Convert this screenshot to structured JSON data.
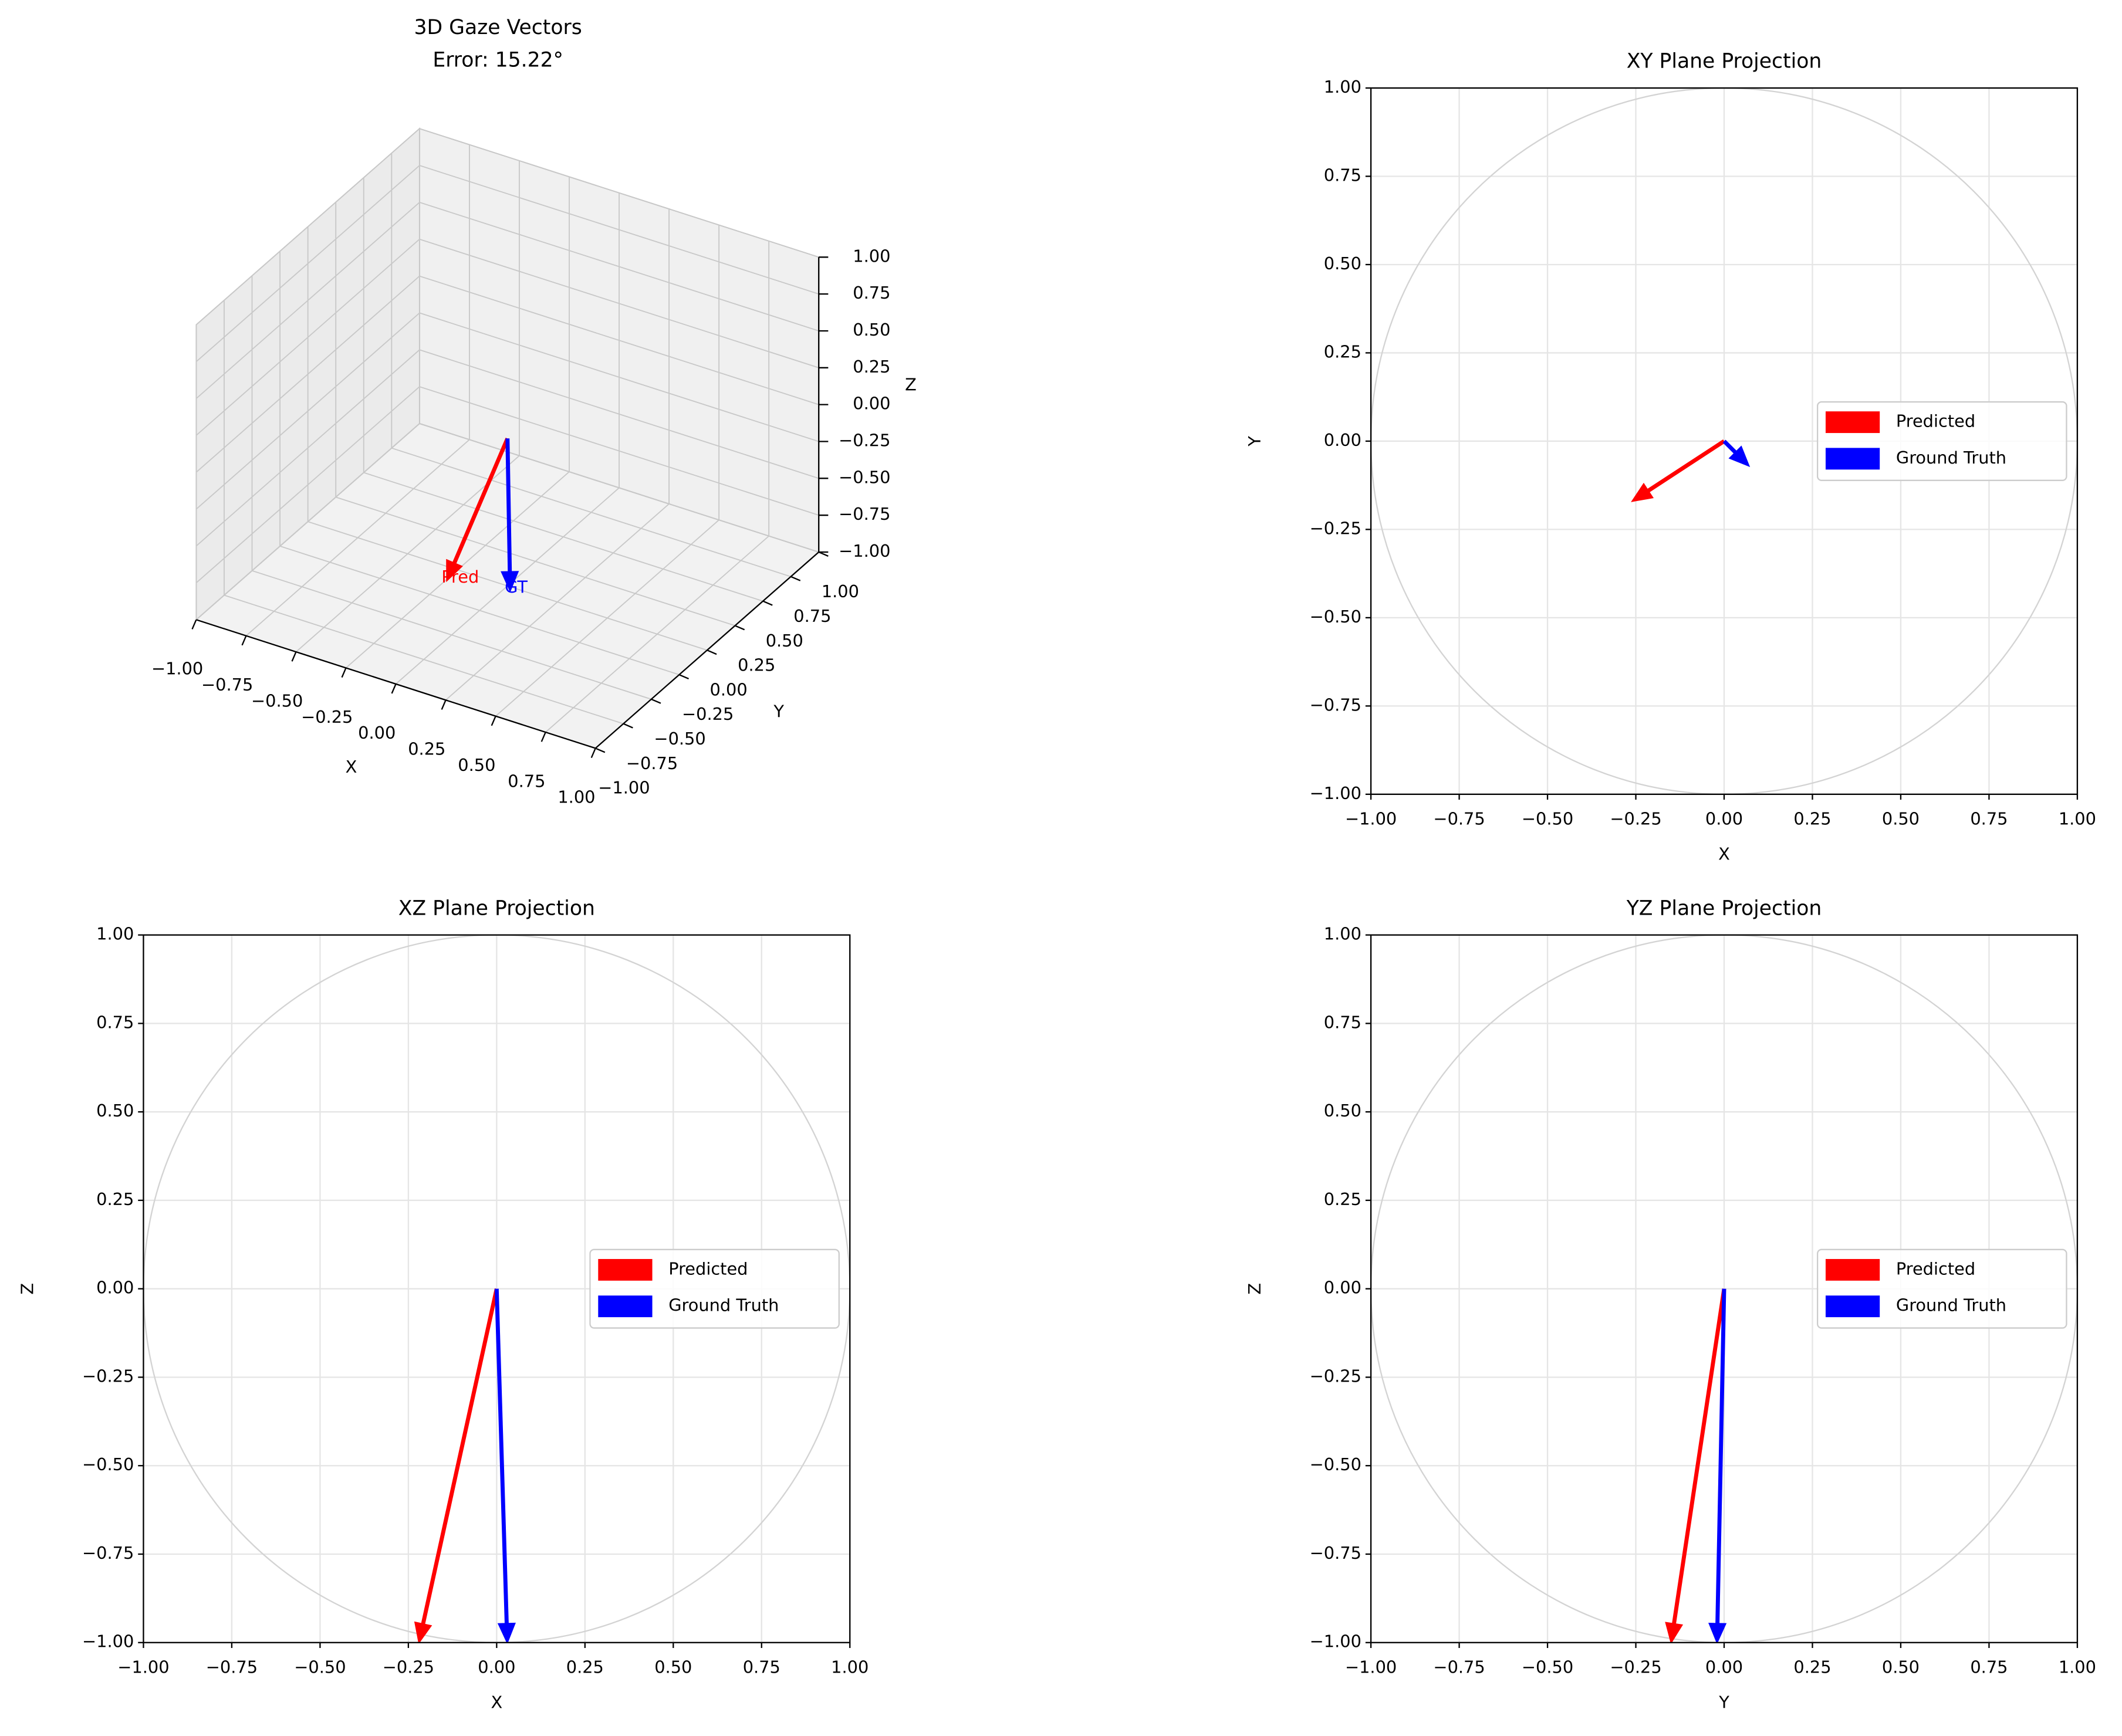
{
  "chart_data": [
    {
      "type": "quiver3d",
      "title": "3D Gaze Vectors",
      "subtitle": "Error: 15.22°",
      "xlabel": "X",
      "ylabel": "Y",
      "zlabel": "Z",
      "xlim": [
        -1,
        1
      ],
      "ylim": [
        -1,
        1
      ],
      "zlim": [
        -1,
        1
      ],
      "xticks": [
        {
          "value": -1,
          "label": "−1.00"
        },
        {
          "value": -0.75,
          "label": "−0.75"
        },
        {
          "value": -0.5,
          "label": "−0.50"
        },
        {
          "value": -0.25,
          "label": "−0.25"
        },
        {
          "value": 0,
          "label": "0.00"
        },
        {
          "value": 0.25,
          "label": "0.25"
        },
        {
          "value": 0.5,
          "label": "0.50"
        },
        {
          "value": 0.75,
          "label": "0.75"
        },
        {
          "value": 1,
          "label": "1.00"
        }
      ],
      "yticks": [
        {
          "value": -1,
          "label": "−1.00"
        },
        {
          "value": -0.75,
          "label": "−0.75"
        },
        {
          "value": -0.5,
          "label": "−0.50"
        },
        {
          "value": -0.25,
          "label": "−0.25"
        },
        {
          "value": 0,
          "label": "0.00"
        },
        {
          "value": 0.25,
          "label": "0.25"
        },
        {
          "value": 0.5,
          "label": "0.50"
        },
        {
          "value": 0.75,
          "label": "0.75"
        },
        {
          "value": 1,
          "label": "1.00"
        }
      ],
      "zticks": [
        {
          "value": -1,
          "label": "−1.00"
        },
        {
          "value": -0.75,
          "label": "−0.75"
        },
        {
          "value": -0.5,
          "label": "−0.50"
        },
        {
          "value": -0.25,
          "label": "−0.25"
        },
        {
          "value": 0,
          "label": "0.00"
        },
        {
          "value": 0.25,
          "label": "0.25"
        },
        {
          "value": 0.5,
          "label": "0.50"
        },
        {
          "value": 0.75,
          "label": "0.75"
        },
        {
          "value": 1,
          "label": "1.00"
        }
      ],
      "series": [
        {
          "name": "Pred",
          "color": "#ff0000",
          "vector": [
            -0.22,
            -0.15,
            -0.96
          ]
        },
        {
          "name": "GT",
          "color": "#0000ff",
          "vector": [
            0.03,
            -0.03,
            -1.0
          ]
        }
      ]
    },
    {
      "type": "quiver",
      "title": "XY Plane Projection",
      "xlabel": "X",
      "ylabel": "Y",
      "xlim": [
        -1,
        1
      ],
      "ylim": [
        -1,
        1
      ],
      "xticks": [
        {
          "value": -1,
          "label": "−1.00"
        },
        {
          "value": -0.75,
          "label": "−0.75"
        },
        {
          "value": -0.5,
          "label": "−0.50"
        },
        {
          "value": -0.25,
          "label": "−0.25"
        },
        {
          "value": 0,
          "label": "0.00"
        },
        {
          "value": 0.25,
          "label": "0.25"
        },
        {
          "value": 0.5,
          "label": "0.50"
        },
        {
          "value": 0.75,
          "label": "0.75"
        },
        {
          "value": 1,
          "label": "1.00"
        }
      ],
      "yticks": [
        {
          "value": -1,
          "label": "−1.00"
        },
        {
          "value": -0.75,
          "label": "−0.75"
        },
        {
          "value": -0.5,
          "label": "−0.50"
        },
        {
          "value": -0.25,
          "label": "−0.25"
        },
        {
          "value": 0,
          "label": "0.00"
        },
        {
          "value": 0.25,
          "label": "0.25"
        },
        {
          "value": 0.5,
          "label": "0.50"
        },
        {
          "value": 0.75,
          "label": "0.75"
        },
        {
          "value": 1,
          "label": "1.00"
        }
      ],
      "grid": true,
      "legend": "center right",
      "circle": {
        "radius": 1,
        "color": "#d3d3d3"
      },
      "series": [
        {
          "name": "Predicted",
          "color": "#ff0000",
          "u": -0.26,
          "v": -0.17
        },
        {
          "name": "Ground Truth",
          "color": "#0000ff",
          "u": 0.07,
          "v": -0.07
        }
      ]
    },
    {
      "type": "quiver",
      "title": "XZ Plane Projection",
      "xlabel": "X",
      "ylabel": "Z",
      "xlim": [
        -1,
        1
      ],
      "ylim": [
        -1,
        1
      ],
      "xticks": [
        {
          "value": -1,
          "label": "−1.00"
        },
        {
          "value": -0.75,
          "label": "−0.75"
        },
        {
          "value": -0.5,
          "label": "−0.50"
        },
        {
          "value": -0.25,
          "label": "−0.25"
        },
        {
          "value": 0,
          "label": "0.00"
        },
        {
          "value": 0.25,
          "label": "0.25"
        },
        {
          "value": 0.5,
          "label": "0.50"
        },
        {
          "value": 0.75,
          "label": "0.75"
        },
        {
          "value": 1,
          "label": "1.00"
        }
      ],
      "yticks": [
        {
          "value": -1,
          "label": "−1.00"
        },
        {
          "value": -0.75,
          "label": "−0.75"
        },
        {
          "value": -0.5,
          "label": "−0.50"
        },
        {
          "value": -0.25,
          "label": "−0.25"
        },
        {
          "value": 0,
          "label": "0.00"
        },
        {
          "value": 0.25,
          "label": "0.25"
        },
        {
          "value": 0.5,
          "label": "0.50"
        },
        {
          "value": 0.75,
          "label": "0.75"
        },
        {
          "value": 1,
          "label": "1.00"
        }
      ],
      "grid": true,
      "legend": "center right",
      "circle": {
        "radius": 1,
        "color": "#d3d3d3"
      },
      "series": [
        {
          "name": "Predicted",
          "color": "#ff0000",
          "u": -0.22,
          "v": -1.0
        },
        {
          "name": "Ground Truth",
          "color": "#0000ff",
          "u": 0.03,
          "v": -1.0
        }
      ]
    },
    {
      "type": "quiver",
      "title": "YZ Plane Projection",
      "xlabel": "Y",
      "ylabel": "Z",
      "xlim": [
        -1,
        1
      ],
      "ylim": [
        -1,
        1
      ],
      "xticks": [
        {
          "value": -1,
          "label": "−1.00"
        },
        {
          "value": -0.75,
          "label": "−0.75"
        },
        {
          "value": -0.5,
          "label": "−0.50"
        },
        {
          "value": -0.25,
          "label": "−0.25"
        },
        {
          "value": 0,
          "label": "0.00"
        },
        {
          "value": 0.25,
          "label": "0.25"
        },
        {
          "value": 0.5,
          "label": "0.50"
        },
        {
          "value": 0.75,
          "label": "0.75"
        },
        {
          "value": 1,
          "label": "1.00"
        }
      ],
      "yticks": [
        {
          "value": -1,
          "label": "−1.00"
        },
        {
          "value": -0.75,
          "label": "−0.75"
        },
        {
          "value": -0.5,
          "label": "−0.50"
        },
        {
          "value": -0.25,
          "label": "−0.25"
        },
        {
          "value": 0,
          "label": "0.00"
        },
        {
          "value": 0.25,
          "label": "0.25"
        },
        {
          "value": 0.5,
          "label": "0.50"
        },
        {
          "value": 0.75,
          "label": "0.75"
        },
        {
          "value": 1,
          "label": "1.00"
        }
      ],
      "grid": true,
      "legend": "center right",
      "circle": {
        "radius": 1,
        "color": "#d3d3d3"
      },
      "series": [
        {
          "name": "Predicted",
          "color": "#ff0000",
          "u": -0.15,
          "v": -1.0
        },
        {
          "name": "Ground Truth",
          "color": "#0000ff",
          "u": -0.02,
          "v": -1.0
        }
      ]
    }
  ]
}
